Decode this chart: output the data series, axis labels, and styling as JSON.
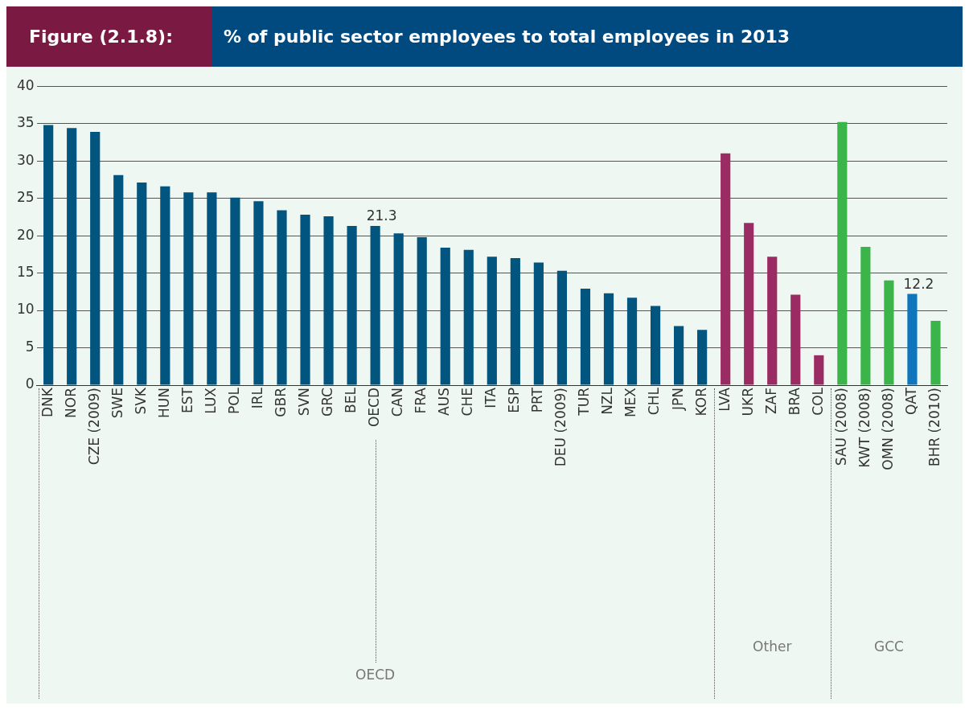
{
  "chart_data": {
    "type": "bar",
    "title": "% of public sector employees to total employees in 2013",
    "subtitle": "Figure (2.1.8):",
    "categories": [
      "DNK",
      "NOR",
      "CZE (2009)",
      "SWE",
      "SVK",
      "HUN",
      "EST",
      "LUX",
      "POL",
      "IRL",
      "GBR",
      "SVN",
      "GRC",
      "BEL",
      "OECD",
      "CAN",
      "FRA",
      "AUS",
      "CHE",
      "ITA",
      "ESP",
      "PRT",
      "DEU (2009)",
      "TUR",
      "NZL",
      "MEX",
      "CHL",
      "JPN",
      "KOR",
      "LVA",
      "UKR",
      "ZAF",
      "BRA",
      "COL",
      "SAU (2008)",
      "KWT (2008)",
      "OMN (2008)",
      "QAT",
      "BHR (2010)"
    ],
    "values": [
      34.8,
      34.4,
      33.9,
      28.1,
      27.1,
      26.6,
      25.8,
      25.8,
      25.1,
      24.6,
      23.4,
      22.8,
      22.6,
      21.3,
      21.3,
      20.3,
      19.8,
      18.4,
      18.1,
      17.2,
      17.0,
      16.4,
      15.3,
      12.9,
      12.3,
      11.7,
      10.6,
      7.9,
      7.4,
      31.0,
      21.7,
      17.2,
      12.1,
      4.0,
      35.2,
      18.5,
      14.0,
      12.2,
      8.6
    ],
    "colors": [
      "#02557f",
      "#02557f",
      "#02557f",
      "#02557f",
      "#02557f",
      "#02557f",
      "#02557f",
      "#02557f",
      "#02557f",
      "#02557f",
      "#02557f",
      "#02557f",
      "#02557f",
      "#02557f",
      "#02557f",
      "#02557f",
      "#02557f",
      "#02557f",
      "#02557f",
      "#02557f",
      "#02557f",
      "#02557f",
      "#02557f",
      "#02557f",
      "#02557f",
      "#02557f",
      "#02557f",
      "#02557f",
      "#02557f",
      "#9b2c63",
      "#9b2c63",
      "#9b2c63",
      "#9b2c63",
      "#9b2c63",
      "#3bb54a",
      "#3bb54a",
      "#3bb54a",
      "#0f75bc",
      "#3bb54a"
    ],
    "value_labels": [
      null,
      null,
      null,
      null,
      null,
      null,
      null,
      null,
      null,
      null,
      null,
      null,
      null,
      null,
      "21.3",
      null,
      null,
      null,
      null,
      null,
      null,
      null,
      null,
      null,
      null,
      null,
      null,
      null,
      null,
      null,
      null,
      null,
      null,
      null,
      null,
      null,
      null,
      "12.2",
      null
    ],
    "ylim": [
      0,
      40
    ],
    "yticks": [
      0,
      5,
      10,
      15,
      20,
      25,
      30,
      35,
      40
    ],
    "grid": "y",
    "legend": false,
    "annotations": [
      "OECD",
      "Other",
      "GCC"
    ]
  }
}
